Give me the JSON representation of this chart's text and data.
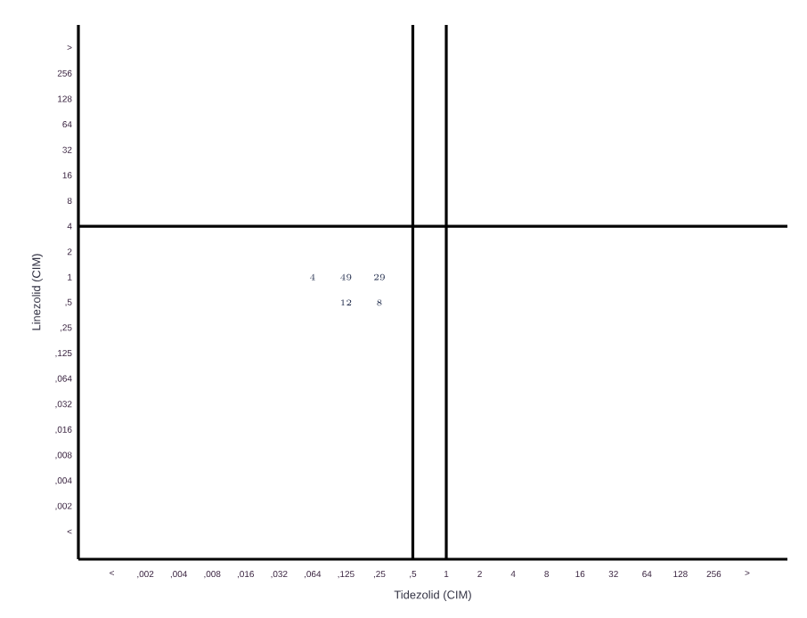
{
  "chart_data": {
    "type": "heatmap",
    "xlabel": "Tidezolid (CIM)",
    "ylabel": "Linezolid (CIM)",
    "categories": [
      "<",
      ",002",
      ",004",
      ",008",
      ",016",
      ",032",
      ",064",
      ",125",
      ",25",
      ",5",
      "1",
      "2",
      "4",
      "8",
      "16",
      "32",
      "64",
      "128",
      "256",
      ">"
    ],
    "y_categories": [
      ">",
      "256",
      "128",
      "64",
      "32",
      "16",
      "8",
      "4",
      "2",
      "1",
      ",5",
      ",25",
      ",125",
      ",064",
      ",032",
      ",016",
      ",008",
      ",004",
      ",002",
      "<"
    ],
    "cells": [
      [
        null,
        null,
        null,
        null,
        null,
        null,
        null,
        null,
        null,
        null,
        null,
        null,
        null,
        null,
        null,
        null,
        null,
        null,
        null,
        null
      ],
      [
        null,
        null,
        null,
        null,
        null,
        null,
        null,
        null,
        null,
        null,
        null,
        null,
        null,
        null,
        null,
        null,
        null,
        null,
        null,
        null
      ],
      [
        null,
        null,
        null,
        null,
        null,
        null,
        null,
        null,
        null,
        null,
        null,
        null,
        null,
        null,
        null,
        null,
        null,
        null,
        null,
        null
      ],
      [
        null,
        null,
        null,
        null,
        null,
        null,
        null,
        null,
        null,
        null,
        null,
        null,
        null,
        null,
        null,
        null,
        null,
        null,
        null,
        null
      ],
      [
        null,
        null,
        null,
        null,
        null,
        null,
        null,
        null,
        null,
        null,
        null,
        null,
        null,
        null,
        null,
        null,
        null,
        null,
        null,
        null
      ],
      [
        null,
        null,
        null,
        null,
        null,
        null,
        null,
        null,
        null,
        null,
        null,
        null,
        null,
        null,
        null,
        null,
        null,
        null,
        null,
        null
      ],
      [
        null,
        null,
        null,
        null,
        null,
        null,
        null,
        null,
        null,
        null,
        null,
        null,
        null,
        null,
        null,
        null,
        null,
        null,
        null,
        null
      ],
      [
        null,
        null,
        null,
        null,
        null,
        null,
        null,
        null,
        null,
        null,
        null,
        null,
        null,
        null,
        null,
        null,
        null,
        null,
        null,
        null
      ],
      [
        null,
        null,
        null,
        null,
        null,
        null,
        null,
        null,
        null,
        null,
        null,
        null,
        null,
        null,
        null,
        null,
        null,
        null,
        null,
        null
      ],
      [
        null,
        null,
        null,
        null,
        null,
        null,
        4,
        49,
        29,
        null,
        null,
        null,
        null,
        null,
        null,
        null,
        null,
        null,
        null,
        null
      ],
      [
        null,
        null,
        null,
        null,
        null,
        null,
        null,
        12,
        8,
        null,
        null,
        null,
        null,
        null,
        null,
        null,
        null,
        null,
        null,
        null
      ],
      [
        null,
        null,
        null,
        null,
        null,
        null,
        null,
        null,
        null,
        null,
        null,
        null,
        null,
        null,
        null,
        null,
        null,
        null,
        null,
        null
      ],
      [
        null,
        null,
        null,
        null,
        null,
        null,
        null,
        null,
        null,
        null,
        null,
        null,
        null,
        null,
        null,
        null,
        null,
        null,
        null,
        null
      ],
      [
        null,
        null,
        null,
        null,
        null,
        null,
        null,
        null,
        null,
        null,
        null,
        null,
        null,
        null,
        null,
        null,
        null,
        null,
        null,
        null
      ],
      [
        null,
        null,
        null,
        null,
        null,
        null,
        null,
        null,
        null,
        null,
        null,
        null,
        null,
        null,
        null,
        null,
        null,
        null,
        null,
        null
      ],
      [
        null,
        null,
        null,
        null,
        null,
        null,
        null,
        null,
        null,
        null,
        null,
        null,
        null,
        null,
        null,
        null,
        null,
        null,
        null,
        null
      ],
      [
        null,
        null,
        null,
        null,
        null,
        null,
        null,
        null,
        null,
        null,
        null,
        null,
        null,
        null,
        null,
        null,
        null,
        null,
        null,
        null
      ],
      [
        null,
        null,
        null,
        null,
        null,
        null,
        null,
        null,
        null,
        null,
        null,
        null,
        null,
        null,
        null,
        null,
        null,
        null,
        null,
        null
      ],
      [
        null,
        null,
        null,
        null,
        null,
        null,
        null,
        null,
        null,
        null,
        null,
        null,
        null,
        null,
        null,
        null,
        null,
        null,
        null,
        null
      ],
      [
        null,
        null,
        null,
        null,
        null,
        null,
        null,
        null,
        null,
        null,
        null,
        null,
        null,
        null,
        null,
        null,
        null,
        null,
        null,
        null
      ]
    ],
    "data_labels": true,
    "ref_lines": [
      {
        "axis": "y",
        "value": "4"
      },
      {
        "axis": "x",
        "value": ",5"
      },
      {
        "axis": "x",
        "value": "1"
      }
    ]
  }
}
